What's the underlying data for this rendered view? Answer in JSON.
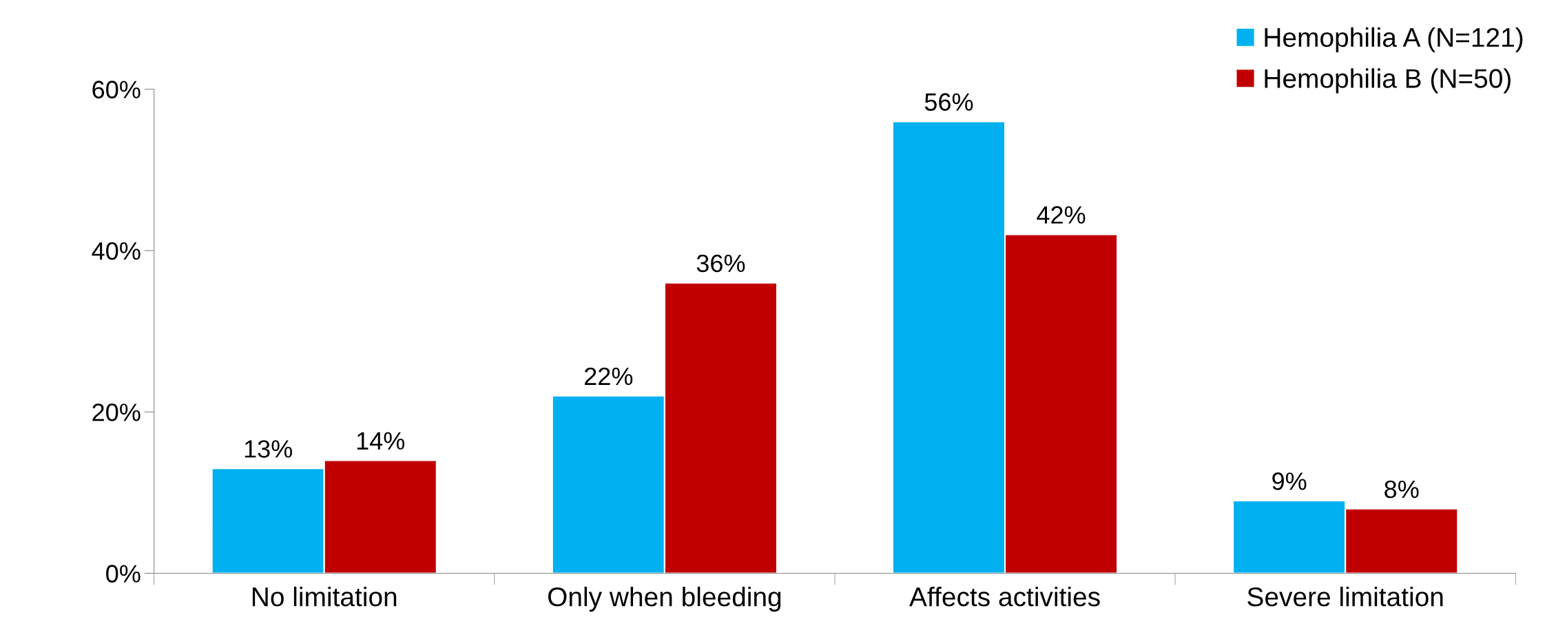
{
  "chart_data": {
    "type": "bar",
    "categories": [
      "No limitation",
      "Only when bleeding",
      "Affects activities",
      "Severe limitation"
    ],
    "series": [
      {
        "name": "Hemophilia A (N=121)",
        "color": "#00b0f0",
        "values": [
          13,
          22,
          56,
          9
        ],
        "value_labels": [
          "13%",
          "22%",
          "56%",
          "9%"
        ]
      },
      {
        "name": "Hemophilia B (N=50)",
        "color": "#c00000",
        "values": [
          14,
          36,
          42,
          8
        ],
        "value_labels": [
          "14%",
          "36%",
          "42%",
          "8%"
        ]
      }
    ],
    "ylim": [
      0,
      60
    ],
    "yticks": [
      {
        "value": 0,
        "label": "0%"
      },
      {
        "value": 20,
        "label": "20%"
      },
      {
        "value": 40,
        "label": "40%"
      },
      {
        "value": 60,
        "label": "60%"
      }
    ],
    "grid": false,
    "legend": "top right"
  }
}
